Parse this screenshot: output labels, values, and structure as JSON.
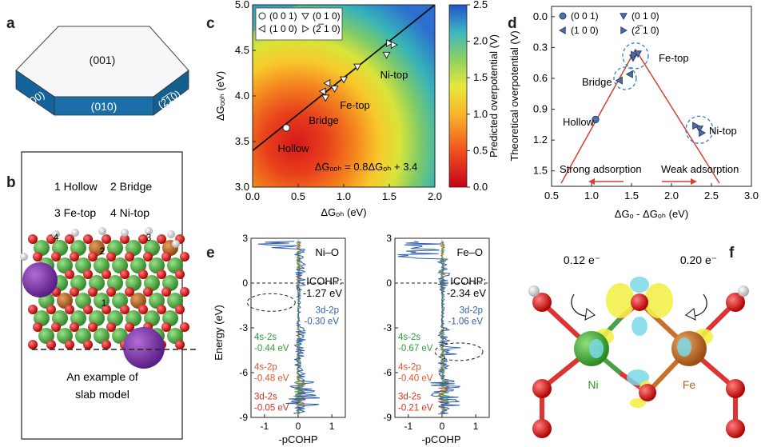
{
  "panel_letters": [
    "a",
    "b",
    "c",
    "d",
    "e",
    "f"
  ],
  "panel_a": {
    "facets": [
      "(001)",
      "(100)",
      "(010)",
      "(2̅1̅0)"
    ]
  },
  "panel_b": {
    "sites": [
      "1 Hollow",
      "2 Bridge",
      "3 Fe-top",
      "4 Ni-top"
    ],
    "caption_line1": "An example of",
    "caption_line2": "slab model",
    "atom_numbers": [
      "1",
      "2",
      "3",
      "4"
    ]
  },
  "panel_c": {
    "xlabel": "ΔGₒₕ (eV)",
    "ylabel": "ΔGₒₒₕ (eV)",
    "colorbar_label": "Predicted overpotential (V)",
    "xticks": [
      "0.0",
      "0.5",
      "1.0",
      "1.5",
      "2.0"
    ],
    "yticks": [
      "3.0",
      "3.5",
      "4.0",
      "4.5",
      "5.0"
    ],
    "cbticks": [
      "0.0",
      "0.5",
      "1.0",
      "1.5",
      "2.0",
      "2.5"
    ],
    "legend": [
      "(0 0 1)",
      "(1 0 0)",
      "(0 1 0)",
      "(2̅ 1 0)"
    ],
    "annotations": [
      "Hollow",
      "Bridge",
      "Fe-top",
      "Ni-top"
    ],
    "equation": "ΔGₒₒₕ = 0.8ΔGₒₕ + 3.4"
  },
  "panel_d": {
    "xlabel": "ΔGₒ - ΔGₒₕ (eV)",
    "ylabel": "Theoretical overpotential (V)",
    "xticks": [
      "0.5",
      "1.0",
      "1.5",
      "2.0",
      "2.5",
      "3.0"
    ],
    "yticks": [
      "0.0",
      "0.3",
      "0.6",
      "0.9",
      "1.2",
      "1.5"
    ],
    "legend": [
      "(0 0 1)",
      "(1 0 0)",
      "(0 1 0)",
      "(2̅ 1 0)"
    ],
    "annotations": [
      "Fe-top",
      "Bridge",
      "Hollow",
      "Ni-top"
    ],
    "strong": "Strong adsorption",
    "weak": "Weak adsorption"
  },
  "panel_e": {
    "ylabel": "Energy (eV)",
    "xlabel": "-pCOHP",
    "yticks": [
      "3",
      "0",
      "-3",
      "-6",
      "-9"
    ],
    "xticks": [
      "-1",
      "0",
      "1"
    ],
    "plots": [
      {
        "title": "Ni–O",
        "icohp_label": "ICOHP:",
        "icohp": "-1.27 eV",
        "labels": [
          {
            "name": "4s-2s",
            "val": "-0.44 eV"
          },
          {
            "name": "4s-2p",
            "val": "-0.48 eV"
          },
          {
            "name": "3d-2s",
            "val": "-0.05 eV"
          },
          {
            "name": "3d-2p",
            "val": "-0.30 eV"
          }
        ]
      },
      {
        "title": "Fe–O",
        "icohp_label": "ICOHP:",
        "icohp": "-2.34 eV",
        "labels": [
          {
            "name": "4s-2s",
            "val": "-0.67 eV"
          },
          {
            "name": "4s-2p",
            "val": "-0.40 eV"
          },
          {
            "name": "3d-2s",
            "val": "-0.21 eV"
          },
          {
            "name": "3d-2p",
            "val": "-1.06 eV"
          }
        ]
      }
    ]
  },
  "panel_f": {
    "left_charge": "0.12 e⁻",
    "right_charge": "0.20 e⁻",
    "ni": "Ni",
    "fe": "Fe"
  },
  "chart_data": [
    {
      "type": "heatmap",
      "title": "",
      "xlabel": "ΔG_OH (eV)",
      "ylabel": "ΔG_OOH (eV)",
      "xlim": [
        0,
        2
      ],
      "ylim": [
        3,
        5
      ],
      "colorbar": {
        "label": "Predicted overpotential (V)",
        "range": [
          0,
          2.5
        ]
      },
      "fit_line": {
        "slope": 0.8,
        "intercept": 3.4
      },
      "series": [
        {
          "name": "(0 0 1)",
          "marker": "circle",
          "points": [
            [
              0.37,
              3.65
            ]
          ]
        },
        {
          "name": "(1 0 0)",
          "marker": "triangle-left",
          "points": [
            [
              0.77,
              4.05
            ],
            [
              0.82,
              4.14
            ]
          ]
        },
        {
          "name": "(0 1 0)",
          "marker": "triangle-down",
          "points": [
            [
              0.8,
              3.98
            ],
            [
              0.9,
              4.08
            ],
            [
              1.0,
              4.18
            ],
            [
              1.15,
              4.32
            ],
            [
              1.47,
              4.45
            ]
          ]
        },
        {
          "name": "(2̅ 1 0)",
          "marker": "triangle-right",
          "points": [
            [
              1.5,
              4.58
            ],
            [
              1.55,
              4.56
            ]
          ]
        }
      ],
      "annotations": [
        "Hollow",
        "Bridge",
        "Fe-top",
        "Ni-top"
      ]
    },
    {
      "type": "scatter",
      "title": "",
      "xlabel": "ΔG_O - ΔG_OH (eV)",
      "ylabel": "Theoretical overpotential (V)",
      "xlim": [
        0.5,
        3.0
      ],
      "ylim": [
        1.65,
        -0.1
      ],
      "series": [
        {
          "name": "(0 0 1)",
          "marker": "hexagon",
          "points": [
            [
              1.05,
              1.0
            ]
          ]
        },
        {
          "name": "(1 0 0)",
          "marker": "triangle-left",
          "points": [
            [
              1.35,
              0.62
            ],
            [
              1.48,
              0.56
            ]
          ]
        },
        {
          "name": "(0 1 0)",
          "marker": "triangle-down",
          "points": [
            [
              1.52,
              0.4
            ],
            [
              1.58,
              0.36
            ],
            [
              2.35,
              1.09
            ]
          ]
        },
        {
          "name": "(2̅ 1 0)",
          "marker": "triangle-right",
          "points": [
            [
              1.53,
              0.37
            ],
            [
              2.3,
              1.06
            ],
            [
              2.38,
              1.13
            ]
          ]
        }
      ],
      "volcano": [
        [
          0.62,
          1.62
        ],
        [
          1.55,
          0.32
        ],
        [
          2.6,
          1.62
        ]
      ],
      "annotations": [
        "Fe-top",
        "Bridge",
        "Hollow",
        "Ni-top",
        "Strong adsorption",
        "Weak adsorption"
      ]
    },
    {
      "type": "line",
      "title": "Ni–O",
      "xlabel": "-pCOHP",
      "ylabel": "Energy (eV)",
      "xlim": [
        -1.4,
        1.4
      ],
      "ylim": [
        -9,
        3
      ],
      "icohp": {
        "total": -1.27,
        "4s-2s": -0.44,
        "4s-2p": -0.48,
        "3d-2s": -0.05,
        "3d-2p": -0.3
      }
    },
    {
      "type": "line",
      "title": "Fe–O",
      "xlabel": "-pCOHP",
      "ylabel": "Energy (eV)",
      "xlim": [
        -1.4,
        1.4
      ],
      "ylim": [
        -9,
        3
      ],
      "icohp": {
        "total": -2.34,
        "4s-2s": -0.67,
        "4s-2p": -0.4,
        "3d-2s": -0.21,
        "3d-2p": -1.06
      }
    }
  ]
}
